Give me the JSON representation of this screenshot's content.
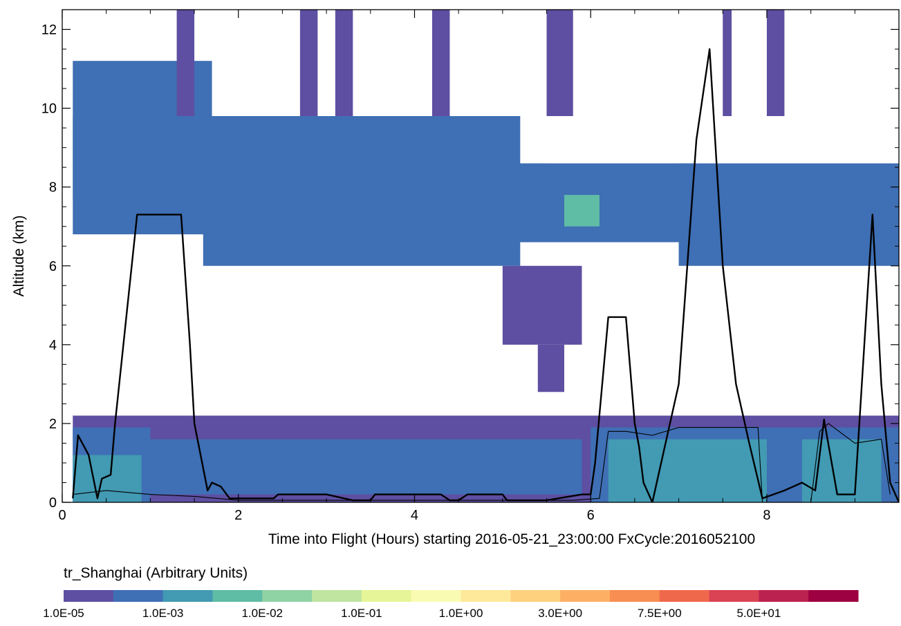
{
  "chart_data": {
    "type": "heatmap",
    "xlabel": "Time into Flight (Hours) starting 2016-05-21_23:00:00  FxCycle:2016052100",
    "ylabel": "Altitude (km)",
    "xlim": [
      0,
      9.5
    ],
    "ylim": [
      0,
      12.5
    ],
    "x_ticks": [
      0,
      2,
      4,
      6,
      8
    ],
    "y_ticks": [
      0,
      2,
      4,
      6,
      8,
      10,
      12
    ],
    "colorbar": {
      "title": "tr_Shanghai (Arbitrary Units)",
      "labels": [
        "1.0E-05",
        "1.0E-03",
        "1.0E-02",
        "1.0E-01",
        "1.0E+00",
        "3.0E+00",
        "7.5E+00",
        "5.0E+01"
      ],
      "colors": [
        "#5e4fa2",
        "#3f6fb4",
        "#429ab3",
        "#5fbca5",
        "#8fd2a4",
        "#bfe5a0",
        "#e6f597",
        "#f9fbb3",
        "#fee99a",
        "#fed17f",
        "#fdb064",
        "#f88e52",
        "#f0684b",
        "#da4353",
        "#bc2250",
        "#9e0142"
      ]
    },
    "regions": [
      {
        "x0": 0.12,
        "x1": 1.55,
        "y0": 7.7,
        "y1": 9.8,
        "level": 3
      },
      {
        "x0": 0.12,
        "x1": 1.7,
        "y0": 6.8,
        "y1": 11.2,
        "level": 1
      },
      {
        "x0": 1.6,
        "x1": 5.5,
        "y0": 7.2,
        "y1": 8.6,
        "level": 2
      },
      {
        "x0": 2.2,
        "x1": 2.6,
        "y0": 7.5,
        "y1": 8.5,
        "level": 3
      },
      {
        "x0": 1.6,
        "x1": 5.2,
        "y0": 6.0,
        "y1": 9.8,
        "level": 1
      },
      {
        "x0": 5.0,
        "x1": 7.2,
        "y0": 6.6,
        "y1": 8.6,
        "level": 1
      },
      {
        "x0": 5.7,
        "x1": 6.1,
        "y0": 7.0,
        "y1": 7.8,
        "level": 3
      },
      {
        "x0": 7.2,
        "x1": 9.55,
        "y0": 7.0,
        "y1": 7.8,
        "level": 2
      },
      {
        "x0": 8.8,
        "x1": 9.1,
        "y0": 7.0,
        "y1": 7.7,
        "level": 3
      },
      {
        "x0": 7.0,
        "x1": 9.55,
        "y0": 6.0,
        "y1": 8.6,
        "level": 1
      },
      {
        "x0": 5.0,
        "x1": 5.9,
        "y0": 4.0,
        "y1": 6.0,
        "level": 0
      },
      {
        "x0": 5.4,
        "x1": 5.7,
        "y0": 2.8,
        "y1": 4.0,
        "level": 0
      },
      {
        "x0": 1.3,
        "x1": 1.5,
        "y0": 9.8,
        "y1": 12.5,
        "level": 0
      },
      {
        "x0": 2.7,
        "x1": 2.9,
        "y0": 9.8,
        "y1": 12.5,
        "level": 0
      },
      {
        "x0": 3.1,
        "x1": 3.3,
        "y0": 9.8,
        "y1": 12.5,
        "level": 0
      },
      {
        "x0": 4.2,
        "x1": 4.4,
        "y0": 9.8,
        "y1": 12.5,
        "level": 0
      },
      {
        "x0": 5.5,
        "x1": 5.8,
        "y0": 9.8,
        "y1": 12.5,
        "level": 0
      },
      {
        "x0": 7.5,
        "x1": 7.6,
        "y0": 9.8,
        "y1": 12.5,
        "level": 0
      },
      {
        "x0": 8.0,
        "x1": 8.2,
        "y0": 9.8,
        "y1": 12.5,
        "level": 0
      },
      {
        "x0": 0.12,
        "x1": 9.55,
        "y0": 0.0,
        "y1": 2.2,
        "level": 0
      },
      {
        "x0": 0.12,
        "x1": 1.0,
        "y0": 0.0,
        "y1": 1.9,
        "level": 1
      },
      {
        "x0": 1.0,
        "x1": 5.9,
        "y0": 0.2,
        "y1": 1.6,
        "level": 1
      },
      {
        "x0": 0.12,
        "x1": 0.9,
        "y0": 0.0,
        "y1": 1.2,
        "level": 2
      },
      {
        "x0": 6.0,
        "x1": 9.55,
        "y0": 0.0,
        "y1": 1.9,
        "level": 1
      },
      {
        "x0": 6.2,
        "x1": 8.0,
        "y0": 0.0,
        "y1": 1.6,
        "level": 2
      },
      {
        "x0": 8.4,
        "x1": 9.3,
        "y0": 0.0,
        "y1": 1.6,
        "level": 2
      }
    ],
    "series": [
      {
        "x": [
          0.12,
          0.18,
          0.3,
          0.4,
          0.45,
          0.55,
          0.6,
          0.85,
          1.35,
          1.45,
          1.5,
          1.65,
          1.7,
          1.8,
          1.9,
          2.0,
          2.4,
          2.45,
          3.0,
          3.3,
          3.5,
          3.55,
          4.3,
          4.4,
          4.5,
          4.6,
          5.0,
          5.05,
          5.5,
          5.9,
          6.0,
          6.05,
          6.2,
          6.4,
          6.5,
          6.55,
          6.6,
          6.7,
          7.0,
          7.2,
          7.35,
          7.5,
          7.65,
          7.8,
          7.95,
          8.2,
          8.4,
          8.55,
          8.65,
          8.8,
          9.0,
          9.2,
          9.3,
          9.4,
          9.5
        ],
        "y": [
          0.1,
          1.7,
          1.2,
          0.1,
          0.6,
          0.7,
          2.0,
          7.3,
          7.3,
          4.0,
          2.0,
          0.3,
          0.5,
          0.4,
          0.1,
          0.1,
          0.1,
          0.2,
          0.2,
          0.05,
          0.05,
          0.2,
          0.2,
          0.05,
          0.05,
          0.2,
          0.2,
          0.05,
          0.05,
          0.2,
          0.2,
          1.0,
          4.7,
          4.7,
          2.0,
          1.4,
          0.5,
          0.0,
          3.0,
          9.2,
          11.5,
          6.0,
          3.0,
          1.5,
          0.1,
          0.3,
          0.5,
          0.3,
          2.1,
          0.2,
          0.2,
          7.3,
          3.0,
          0.5,
          0.0
        ]
      },
      {
        "x": [
          0.12,
          0.5,
          1.0,
          1.5,
          2.0,
          3.0,
          4.0,
          5.0,
          5.8,
          6.1,
          6.2,
          6.4,
          6.7,
          7.0,
          7.5,
          7.9,
          7.95,
          8.0,
          8.5,
          8.6,
          8.7,
          9.0,
          9.3,
          9.4
        ],
        "y": [
          0.2,
          0.3,
          0.2,
          0.15,
          0.05,
          0.05,
          0.05,
          0.05,
          0.05,
          0.1,
          1.8,
          1.8,
          1.7,
          1.9,
          1.9,
          1.9,
          0.0,
          0.0,
          0.0,
          1.8,
          2.0,
          1.5,
          1.6,
          0.2
        ]
      }
    ]
  }
}
